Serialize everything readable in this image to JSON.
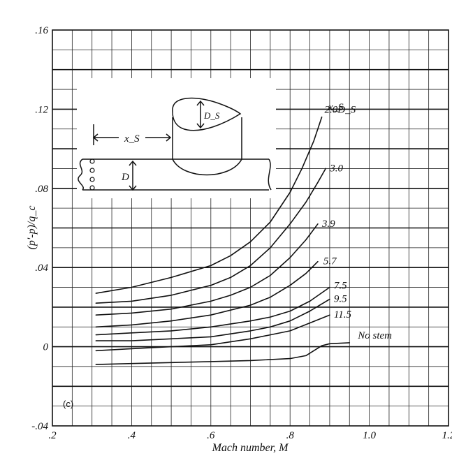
{
  "chart_data": {
    "type": "line",
    "xlabel": "Mach number, M",
    "ylabel": "(p'-p)/q_c",
    "xlim": [
      0.2,
      1.2
    ],
    "ylim": [
      -0.04,
      0.16
    ],
    "x_ticks": [
      ".2",
      ".4",
      ".6",
      ".8",
      "1.0",
      "1.2"
    ],
    "y_ticks": [
      "-.04",
      "0",
      ".04",
      ".08",
      ".12",
      ".16"
    ],
    "grid": true,
    "panel_label": "(c)",
    "legend_title": "x_S",
    "series": [
      {
        "name": "2.0 D_S",
        "label": "2.0D_S",
        "x": [
          0.31,
          0.4,
          0.5,
          0.6,
          0.65,
          0.7,
          0.75,
          0.8,
          0.83,
          0.86,
          0.88
        ],
        "y": [
          0.027,
          0.03,
          0.035,
          0.041,
          0.046,
          0.053,
          0.063,
          0.078,
          0.09,
          0.104,
          0.116
        ]
      },
      {
        "name": "3.0",
        "label": "3.0",
        "x": [
          0.31,
          0.4,
          0.5,
          0.6,
          0.65,
          0.7,
          0.75,
          0.8,
          0.84,
          0.87,
          0.89
        ],
        "y": [
          0.022,
          0.023,
          0.026,
          0.031,
          0.035,
          0.041,
          0.05,
          0.062,
          0.073,
          0.083,
          0.09
        ]
      },
      {
        "name": "3.9",
        "label": "3.9",
        "x": [
          0.31,
          0.4,
          0.5,
          0.6,
          0.65,
          0.7,
          0.75,
          0.8,
          0.84,
          0.87
        ],
        "y": [
          0.016,
          0.017,
          0.019,
          0.023,
          0.026,
          0.03,
          0.036,
          0.045,
          0.054,
          0.062
        ]
      },
      {
        "name": "5.7",
        "label": "5.7",
        "x": [
          0.31,
          0.4,
          0.5,
          0.6,
          0.7,
          0.75,
          0.8,
          0.84,
          0.87
        ],
        "y": [
          0.01,
          0.011,
          0.013,
          0.016,
          0.021,
          0.025,
          0.031,
          0.037,
          0.043
        ]
      },
      {
        "name": "7.5",
        "label": "7.5",
        "x": [
          0.31,
          0.4,
          0.5,
          0.6,
          0.7,
          0.75,
          0.8,
          0.85,
          0.9
        ],
        "y": [
          0.006,
          0.007,
          0.008,
          0.01,
          0.013,
          0.015,
          0.018,
          0.023,
          0.03
        ]
      },
      {
        "name": "9.5",
        "label": "9.5",
        "x": [
          0.31,
          0.4,
          0.5,
          0.6,
          0.7,
          0.75,
          0.8,
          0.85,
          0.9
        ],
        "y": [
          0.003,
          0.003,
          0.004,
          0.005,
          0.008,
          0.01,
          0.013,
          0.018,
          0.024
        ]
      },
      {
        "name": "11.5",
        "label": "11.5",
        "x": [
          0.31,
          0.4,
          0.5,
          0.6,
          0.7,
          0.75,
          0.8,
          0.85,
          0.9
        ],
        "y": [
          -0.002,
          -0.001,
          0.0,
          0.001,
          0.004,
          0.006,
          0.008,
          0.012,
          0.016
        ]
      },
      {
        "name": "No stem",
        "label": "No stem",
        "x": [
          0.31,
          0.4,
          0.5,
          0.6,
          0.7,
          0.8,
          0.84,
          0.86,
          0.88,
          0.9,
          0.95
        ],
        "y": [
          -0.009,
          -0.0085,
          -0.008,
          -0.0075,
          -0.007,
          -0.006,
          -0.0045,
          -0.002,
          0.0005,
          0.0015,
          0.002
        ]
      }
    ],
    "inset_labels": {
      "stem_length": "x_S",
      "stem_diameter": "D_S",
      "body_diameter": "D"
    }
  }
}
